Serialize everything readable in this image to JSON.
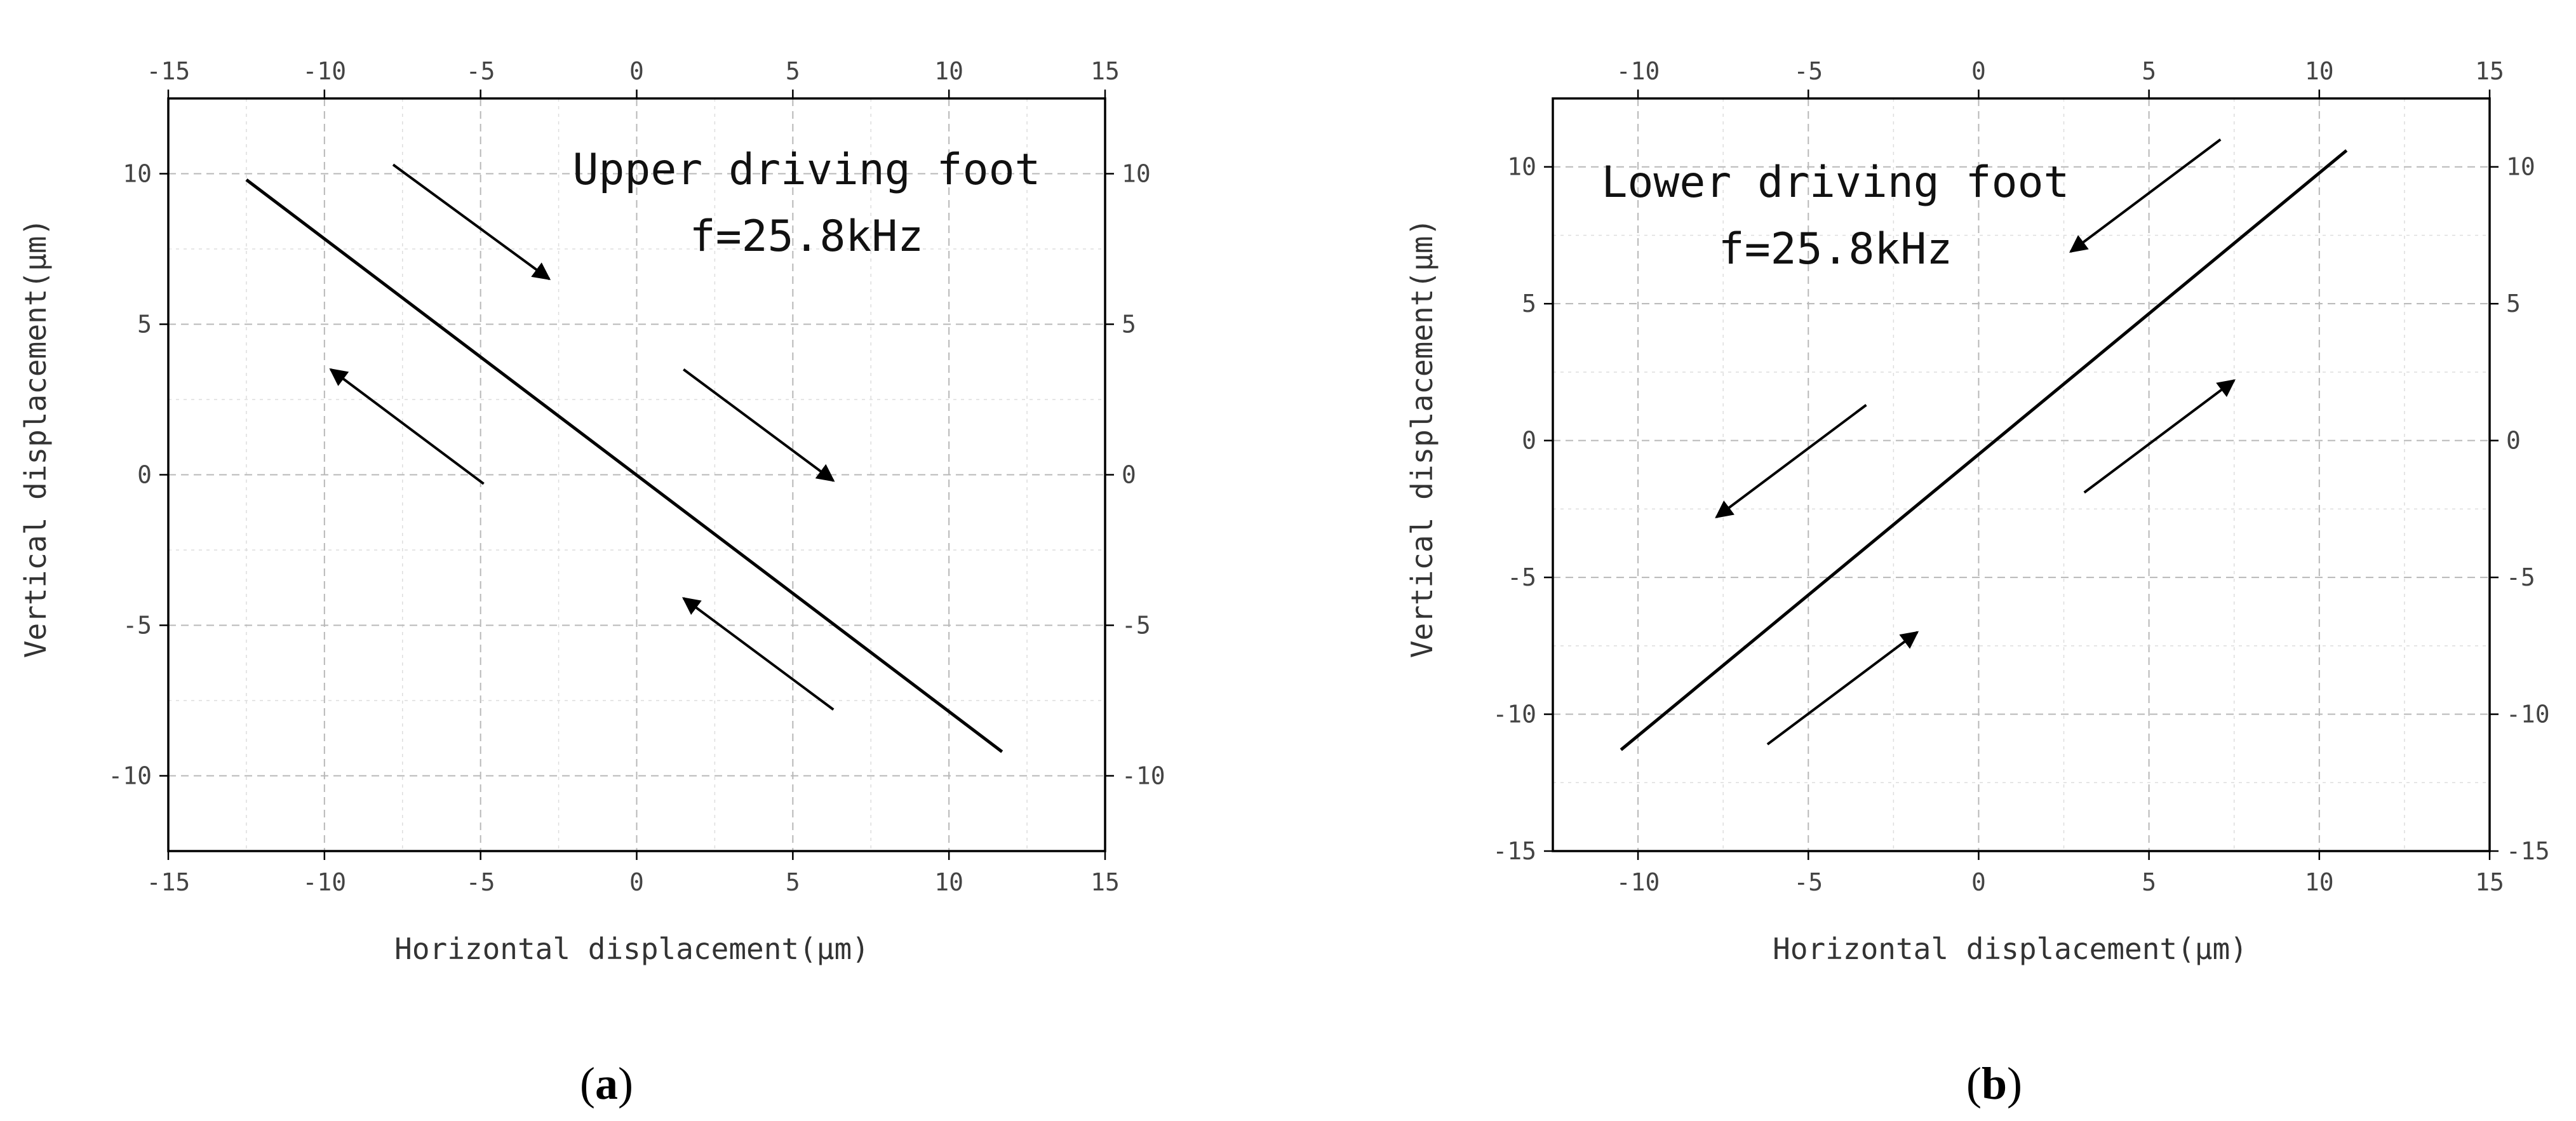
{
  "chart_data": [
    {
      "type": "line",
      "panel_label": "a",
      "xlabel": "Horizontal displacement(μm)",
      "ylabel": "Vertical displacement(μm)",
      "xlim": [
        -15,
        15
      ],
      "ylim": [
        -12.5,
        12.5
      ],
      "xticks": [
        -15,
        -10,
        -5,
        0,
        5,
        10,
        15
      ],
      "yticks": [
        -10,
        -5,
        0,
        5,
        10
      ],
      "grid": true,
      "annotation_lines": [
        "Upper driving foot",
        "f=25.8kHz"
      ],
      "series": [
        {
          "x": [
            -12.5,
            11.7
          ],
          "y": [
            9.8,
            -9.2
          ]
        }
      ],
      "arrows": [
        {
          "from": [
            -7.8,
            10.3
          ],
          "to": [
            -2.8,
            6.5
          ]
        },
        {
          "from": [
            -4.9,
            -0.3
          ],
          "to": [
            -9.8,
            3.5
          ]
        },
        {
          "from": [
            1.5,
            3.5
          ],
          "to": [
            6.3,
            -0.2
          ]
        },
        {
          "from": [
            6.3,
            -7.8
          ],
          "to": [
            1.5,
            -4.1
          ]
        }
      ]
    },
    {
      "type": "line",
      "panel_label": "b",
      "xlabel": "Horizontal displacement(μm)",
      "ylabel": "Vertical displacement(μm)",
      "xlim": [
        -12.5,
        15
      ],
      "ylim": [
        -15,
        12.5
      ],
      "xticks": [
        -10,
        -5,
        0,
        5,
        10,
        15
      ],
      "yticks": [
        -15,
        -10,
        -5,
        0,
        5,
        10
      ],
      "grid": true,
      "annotation_lines": [
        "Lower driving foot",
        "f=25.8kHz"
      ],
      "series": [
        {
          "x": [
            -10.5,
            10.8
          ],
          "y": [
            -11.3,
            10.6
          ]
        }
      ],
      "arrows": [
        {
          "from": [
            7.1,
            11.0
          ],
          "to": [
            2.7,
            6.9
          ]
        },
        {
          "from": [
            -3.3,
            1.3
          ],
          "to": [
            -7.7,
            -2.8
          ]
        },
        {
          "from": [
            -6.2,
            -11.1
          ],
          "to": [
            -1.8,
            -7.0
          ]
        },
        {
          "from": [
            3.1,
            -1.9
          ],
          "to": [
            7.5,
            2.2
          ]
        }
      ]
    }
  ]
}
